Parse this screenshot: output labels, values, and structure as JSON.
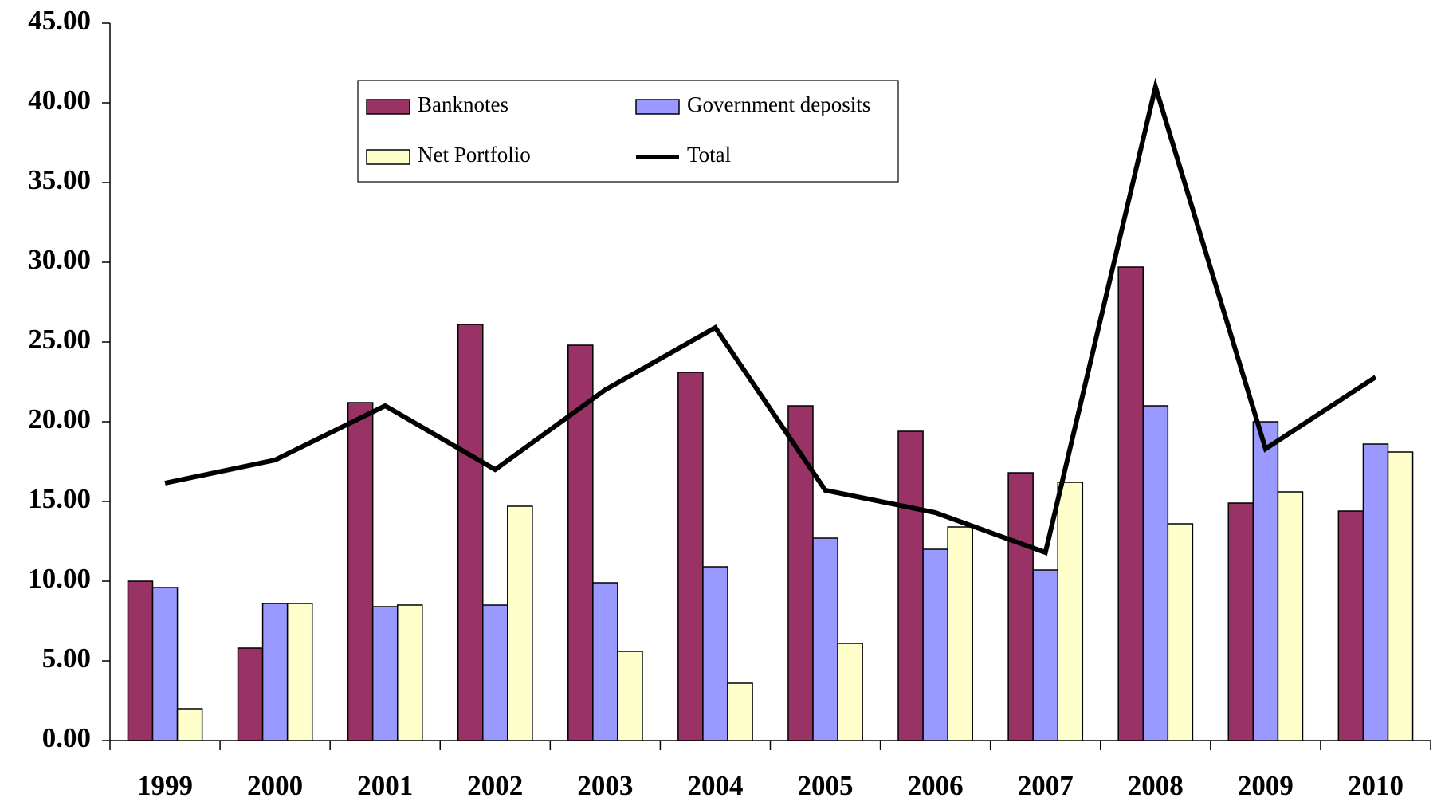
{
  "chart_data": {
    "type": "bar",
    "categories": [
      "1999",
      "2000",
      "2001",
      "2002",
      "2003",
      "2004",
      "2005",
      "2006",
      "2007",
      "2008",
      "2009",
      "2010"
    ],
    "series": [
      {
        "name": "Banknotes",
        "color": "#993366",
        "values": [
          10.0,
          5.8,
          21.2,
          26.1,
          24.8,
          23.1,
          21.0,
          19.4,
          16.8,
          29.7,
          14.9,
          14.4
        ]
      },
      {
        "name": "Government deposits",
        "color": "#9999ff",
        "values": [
          9.6,
          8.6,
          8.4,
          8.5,
          9.9,
          10.9,
          12.7,
          12.0,
          10.7,
          21.0,
          20.0,
          18.6
        ]
      },
      {
        "name": "Net Portfolio",
        "color": "#ffffcc",
        "values": [
          2.0,
          8.6,
          8.5,
          14.7,
          5.6,
          3.6,
          6.1,
          13.4,
          16.2,
          13.6,
          15.6,
          18.1
        ]
      },
      {
        "name": "Total",
        "type": "line",
        "color": "#000000",
        "values": [
          16.15,
          17.6,
          21.0,
          17.0,
          22.0,
          25.9,
          15.7,
          14.3,
          11.8,
          41.0,
          18.3,
          22.8
        ]
      }
    ],
    "ylim": [
      0,
      45
    ],
    "yticks": [
      {
        "value": 0,
        "label": "0.00"
      },
      {
        "value": 5,
        "label": "5.00"
      },
      {
        "value": 10,
        "label": "10.00"
      },
      {
        "value": 15,
        "label": "15.00"
      },
      {
        "value": 20,
        "label": "20.00"
      },
      {
        "value": 25,
        "label": "25.00"
      },
      {
        "value": 30,
        "label": "30.00"
      },
      {
        "value": 35,
        "label": "35.00"
      },
      {
        "value": 40,
        "label": "40.00"
      },
      {
        "value": 45,
        "label": "45.00"
      }
    ],
    "legend": "top"
  }
}
